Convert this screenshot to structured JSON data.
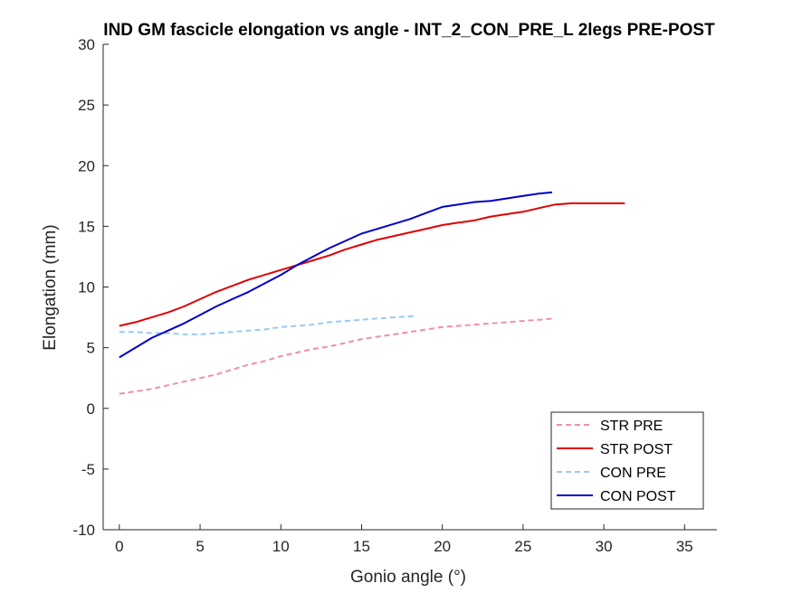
{
  "chart_data": {
    "type": "line",
    "title": "IND GM fascicle elongation vs angle - INT_2_CON_PRE_L 2legs PRE-POST",
    "xlabel": "Gonio angle (°)",
    "ylabel": "Elongation (mm)",
    "xlim": [
      -1,
      37
    ],
    "ylim": [
      -10,
      30
    ],
    "xticks": [
      0,
      5,
      10,
      15,
      20,
      25,
      30,
      35
    ],
    "yticks": [
      -10,
      -5,
      0,
      5,
      10,
      15,
      20,
      25,
      30
    ],
    "grid": false,
    "legend_position": "bottom-right",
    "series": [
      {
        "name": "STR PRE",
        "color": "#f28cb1",
        "dashed": true,
        "x": [
          0,
          1,
          2,
          3,
          4,
          5,
          6,
          7,
          8,
          9,
          10,
          11,
          12,
          13,
          14,
          15,
          16,
          17,
          18,
          19,
          20,
          21,
          22,
          23,
          24,
          25,
          26,
          26.8
        ],
        "y": [
          1.2,
          1.4,
          1.6,
          1.9,
          2.2,
          2.5,
          2.8,
          3.2,
          3.6,
          3.9,
          4.3,
          4.6,
          4.9,
          5.1,
          5.4,
          5.7,
          5.9,
          6.1,
          6.3,
          6.5,
          6.7,
          6.8,
          6.9,
          7.0,
          7.1,
          7.2,
          7.3,
          7.4
        ]
      },
      {
        "name": "STR POST",
        "color": "#e00000",
        "dashed": false,
        "x": [
          0,
          1,
          2,
          3,
          4,
          5,
          6,
          7,
          8,
          9,
          10,
          11,
          12,
          13,
          14,
          15,
          16,
          17,
          18,
          19,
          20,
          21,
          22,
          23,
          24,
          25,
          26,
          27,
          28,
          29,
          30,
          31.3
        ],
        "y": [
          6.8,
          7.1,
          7.5,
          7.9,
          8.4,
          9.0,
          9.6,
          10.1,
          10.6,
          11.0,
          11.4,
          11.8,
          12.2,
          12.6,
          13.1,
          13.5,
          13.9,
          14.2,
          14.5,
          14.8,
          15.1,
          15.3,
          15.5,
          15.8,
          16.0,
          16.2,
          16.5,
          16.8,
          16.9,
          16.9,
          16.9,
          16.9
        ]
      },
      {
        "name": "CON PRE",
        "color": "#99c9f5",
        "dashed": true,
        "x": [
          0,
          1,
          2,
          3,
          4,
          5,
          6,
          7,
          8,
          9,
          10,
          11,
          12,
          13,
          14,
          15,
          16,
          17,
          18.3
        ],
        "y": [
          6.3,
          6.3,
          6.2,
          6.2,
          6.1,
          6.1,
          6.2,
          6.3,
          6.4,
          6.5,
          6.7,
          6.8,
          6.9,
          7.1,
          7.2,
          7.3,
          7.4,
          7.5,
          7.6
        ]
      },
      {
        "name": "CON POST",
        "color": "#0000c8",
        "dashed": false,
        "x": [
          0,
          1,
          2,
          3,
          4,
          5,
          6,
          7,
          8,
          9,
          10,
          11,
          12,
          13,
          14,
          15,
          16,
          17,
          18,
          19,
          20,
          21,
          22,
          23,
          24,
          25,
          26,
          26.8
        ],
        "y": [
          4.2,
          5.0,
          5.8,
          6.4,
          7.0,
          7.7,
          8.4,
          9.0,
          9.6,
          10.3,
          11.0,
          11.8,
          12.5,
          13.2,
          13.8,
          14.4,
          14.8,
          15.2,
          15.6,
          16.1,
          16.6,
          16.8,
          17.0,
          17.1,
          17.3,
          17.5,
          17.7,
          17.8
        ]
      }
    ]
  }
}
